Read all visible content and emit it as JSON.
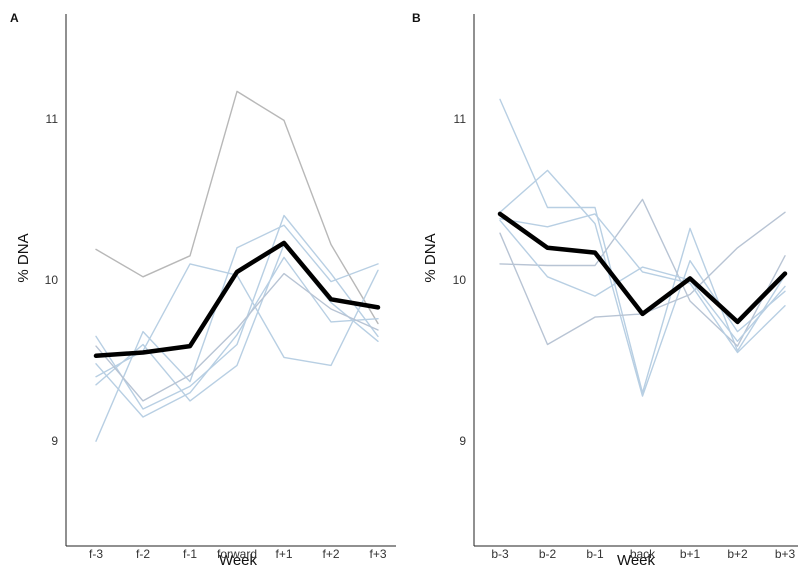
{
  "chart_data": [
    {
      "type": "line",
      "panel_label": "A",
      "xlabel": "Week",
      "ylabel": "% DNA",
      "categories": [
        "f-3",
        "f-2",
        "f-1",
        "forward",
        "f+1",
        "f+2",
        "f+3"
      ],
      "ylim": [
        8.35,
        11.65
      ],
      "yticks": [
        9,
        10,
        11
      ],
      "grid": false,
      "series": [
        {
          "role": "individual",
          "color": "#b8b8b8",
          "values": [
            10.19,
            10.02,
            10.15,
            11.17,
            10.99,
            10.22,
            9.73
          ]
        },
        {
          "role": "individual",
          "color": "#b8cfe3",
          "values": [
            9.0,
            9.68,
            9.37,
            10.2,
            10.34,
            9.99,
            10.1
          ]
        },
        {
          "role": "individual",
          "color": "#b8cfe3",
          "values": [
            9.65,
            9.2,
            9.34,
            9.6,
            10.4,
            10.04,
            9.65
          ]
        },
        {
          "role": "individual",
          "color": "#b8cfe3",
          "values": [
            9.4,
            9.56,
            10.1,
            10.03,
            9.52,
            9.47,
            10.06
          ]
        },
        {
          "role": "individual",
          "color": "#b8cfe3",
          "values": [
            9.48,
            9.15,
            9.3,
            9.66,
            10.14,
            9.74,
            9.76
          ]
        },
        {
          "role": "individual",
          "color": "#b8cfe3",
          "values": [
            9.35,
            9.6,
            9.25,
            9.47,
            10.22,
            9.86,
            9.62
          ]
        },
        {
          "role": "individual",
          "color": "#b8c4d4",
          "values": [
            9.59,
            9.25,
            9.41,
            9.7,
            10.04,
            9.82,
            9.69
          ]
        },
        {
          "role": "mean",
          "color": "#000000",
          "values": [
            9.53,
            9.55,
            9.59,
            10.05,
            10.23,
            9.88,
            9.83
          ]
        }
      ]
    },
    {
      "type": "line",
      "panel_label": "B",
      "xlabel": "Week",
      "ylabel": "% DNA",
      "categories": [
        "b-3",
        "b-2",
        "b-1",
        "back",
        "b+1",
        "b+2",
        "b+3"
      ],
      "ylim": [
        8.35,
        11.65
      ],
      "yticks": [
        9,
        10,
        11
      ],
      "grid": false,
      "series": [
        {
          "role": "individual",
          "color": "#b8cfe3",
          "values": [
            11.12,
            10.45,
            10.45,
            9.3,
            10.32,
            9.56,
            10.03
          ]
        },
        {
          "role": "individual",
          "color": "#b8cfe3",
          "values": [
            10.42,
            10.68,
            10.35,
            9.28,
            10.12,
            9.68,
            9.93
          ]
        },
        {
          "role": "individual",
          "color": "#b8c4d4",
          "values": [
            10.29,
            9.6,
            9.77,
            9.79,
            9.91,
            10.2,
            10.42
          ]
        },
        {
          "role": "individual",
          "color": "#b8c4d4",
          "values": [
            10.1,
            10.09,
            10.09,
            10.5,
            9.87,
            9.59,
            10.15
          ]
        },
        {
          "role": "individual",
          "color": "#b8cfe3",
          "values": [
            10.38,
            10.33,
            10.41,
            10.05,
            9.98,
            9.55,
            9.84
          ]
        },
        {
          "role": "individual",
          "color": "#b8cfe3",
          "values": [
            10.37,
            10.02,
            9.9,
            10.08,
            10.0,
            9.62,
            9.96
          ]
        },
        {
          "role": "mean",
          "color": "#000000",
          "values": [
            10.41,
            10.2,
            10.17,
            9.79,
            10.01,
            9.74,
            10.04
          ]
        }
      ]
    }
  ]
}
